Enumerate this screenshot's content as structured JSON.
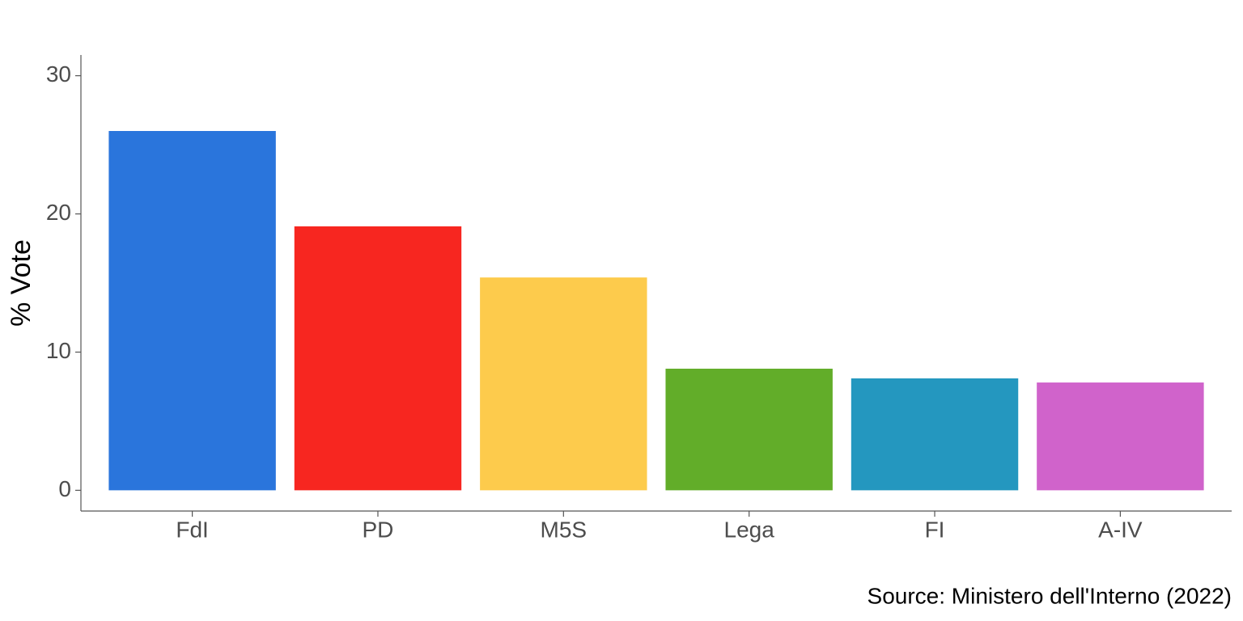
{
  "chart_data": {
    "type": "bar",
    "y_label": "% Vote",
    "caption": "Source: Ministero dell'Interno (2022)",
    "categories": [
      "FdI",
      "PD",
      "M5S",
      "Lega",
      "FI",
      "A-IV"
    ],
    "values": [
      26.0,
      19.1,
      15.4,
      8.8,
      8.1,
      7.8
    ],
    "colors": [
      "#2a75dc",
      "#f72620",
      "#fdcb4c",
      "#62ad29",
      "#2497bf",
      "#d063cb"
    ],
    "ylim": [
      -1.5,
      31.5
    ],
    "yticks": [
      0,
      10,
      20,
      30
    ]
  }
}
